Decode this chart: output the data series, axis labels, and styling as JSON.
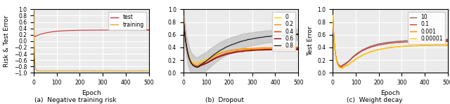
{
  "fig_width": 6.4,
  "fig_height": 1.49,
  "dpi": 100,
  "subplot_titles": [
    "(a)  Negative training risk",
    "(b)  Dropout",
    "(c)  Weight decay"
  ],
  "plot1": {
    "xlabel": "Epoch",
    "ylabel": "Risk & Test Error",
    "xlim": [
      0,
      500
    ],
    "ylim": [
      -1.0,
      1.0
    ],
    "yticks": [
      -1.0,
      -0.8,
      -0.6,
      -0.4,
      -0.2,
      0.0,
      0.2,
      0.4,
      0.6,
      0.8,
      1.0
    ],
    "xticks": [
      0,
      100,
      200,
      300,
      400,
      500
    ],
    "legend": [
      "test",
      "training"
    ],
    "test_color": "#cc3333",
    "train_color": "#ddaa33"
  },
  "plot2": {
    "xlabel": "",
    "ylabel": "",
    "xlim": [
      0,
      500
    ],
    "ylim": [
      0.0,
      1.0
    ],
    "yticks": [
      0.0,
      0.2,
      0.4,
      0.6,
      0.8,
      1.0
    ],
    "xticks": [
      0,
      100,
      200,
      300,
      400,
      500
    ],
    "legend": [
      "0",
      "0.2",
      "0.4",
      "0.6",
      "0.8"
    ],
    "legend_colors": [
      "#ffcc00",
      "#ff8800",
      "#cc3300",
      "#880000",
      "#222222"
    ],
    "band_color": "#aaaaaa",
    "band_alpha": 0.45
  },
  "plot3": {
    "xlabel": "Epoch",
    "ylabel": "Test Error",
    "xlim": [
      0,
      500
    ],
    "ylim": [
      0.0,
      1.0
    ],
    "yticks": [
      0.0,
      0.2,
      0.4,
      0.6,
      0.8,
      1.0
    ],
    "xticks": [
      0,
      100,
      200,
      300,
      400,
      500
    ],
    "legend": [
      "10",
      "0.1",
      "0.001",
      "0.00001"
    ],
    "legend_colors": [
      "#886655",
      "#cc3333",
      "#ff8800",
      "#ffcc00"
    ]
  },
  "bg_color": "#ebebeb",
  "grid_color": "white",
  "font_size": 6.5
}
